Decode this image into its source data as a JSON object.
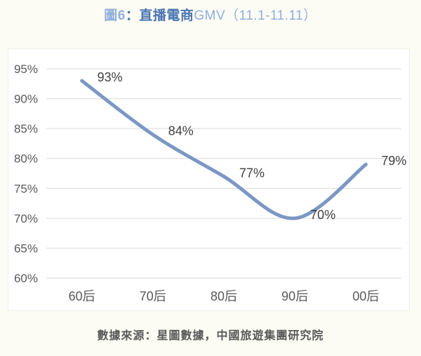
{
  "page": {
    "background": "#FCFCF5",
    "panel_background": "#FFFFFF"
  },
  "title": {
    "part_figure": "圖6",
    "part_main": "：直播電商",
    "part_suffix": "GMV（11.1-11.11）",
    "color_light": "#8FAFDB",
    "color_dark": "#4B76B2"
  },
  "chart_data": {
    "type": "line",
    "title": "圖6：直播電商GMV（11.1-11.11）",
    "categories": [
      "60后",
      "70后",
      "80后",
      "90后",
      "00后"
    ],
    "series": [
      {
        "name": "直播電商GMV",
        "values": [
          93,
          84,
          77,
          70,
          79
        ]
      }
    ],
    "data_labels": [
      "93%",
      "84%",
      "77%",
      "70%",
      "79%"
    ],
    "xlabel": "",
    "ylabel": "",
    "ylim": [
      60,
      95
    ],
    "ytick_step": 5,
    "ytick_labels": [
      "95%",
      "90%",
      "85%",
      "80%",
      "75%",
      "70%",
      "65%",
      "60%"
    ],
    "grid": true,
    "legend": "none",
    "smooth": true,
    "colors": {
      "line": "#7B97C4",
      "grid": "#D9D9D9",
      "axis_text": "#595959",
      "data_label_text": "#3F3F3F"
    }
  },
  "footer": {
    "source": "數據來源：星圖數據，中國旅遊集團研究院"
  }
}
